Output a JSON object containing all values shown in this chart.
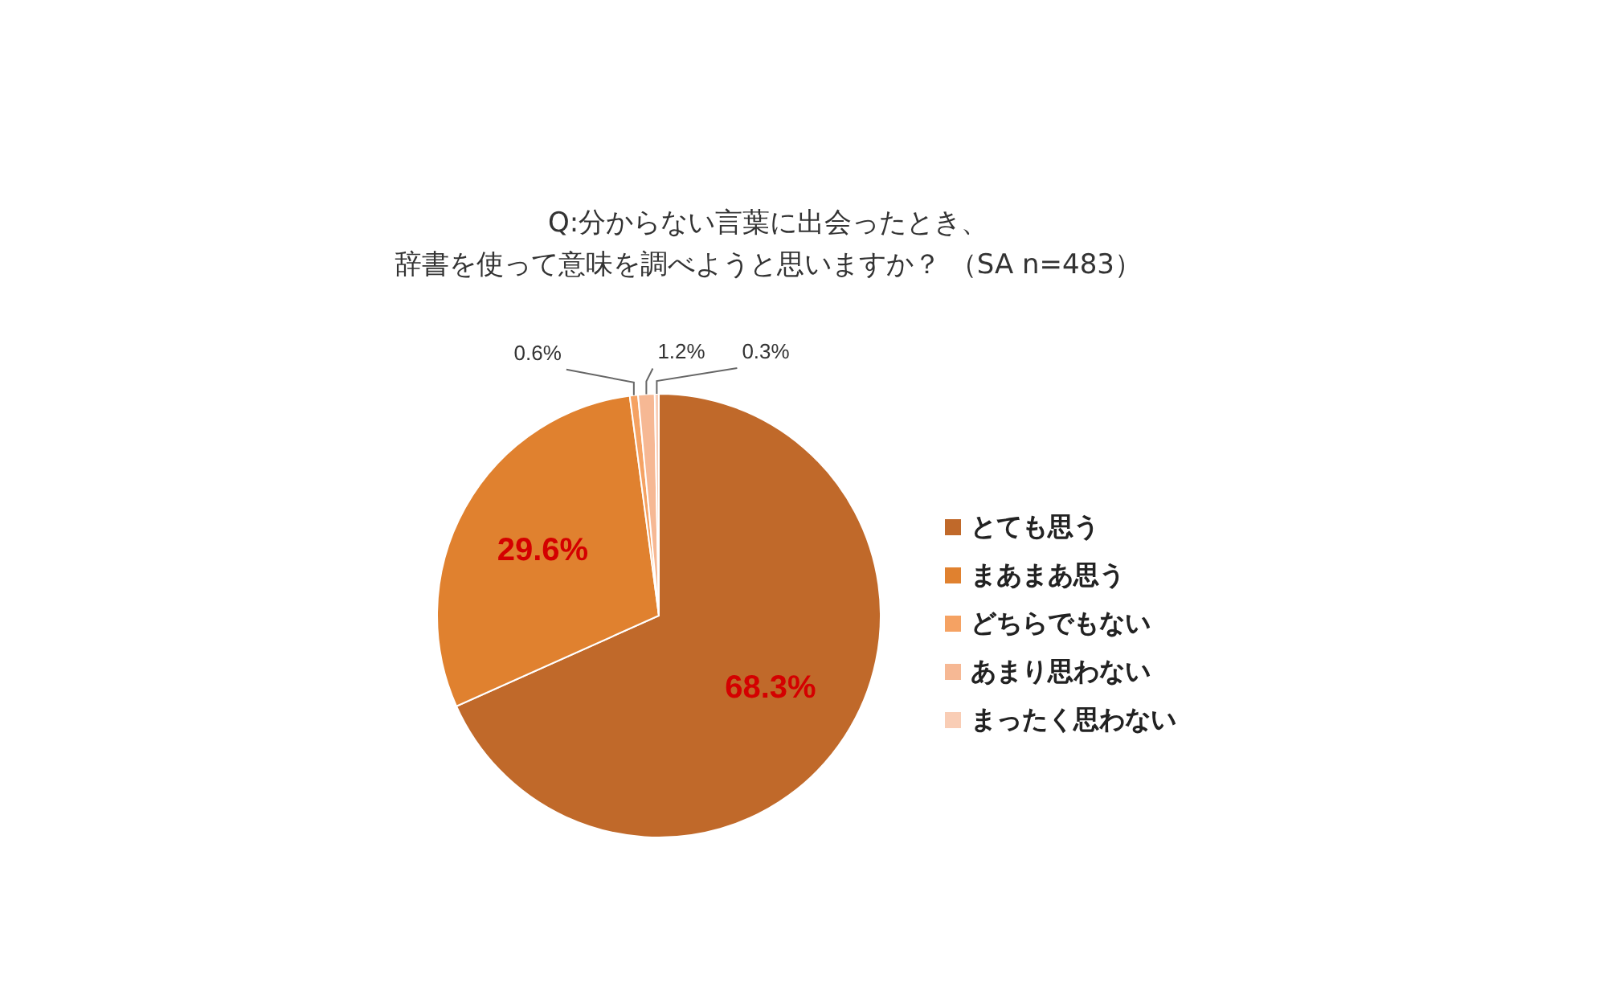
{
  "chart_data": {
    "type": "pie",
    "title": "Q:分からない言葉に出会ったとき、",
    "subtitle": "辞書を使って意味を調べようと思いますか？ （SA n=483）",
    "categories": [
      "とても思う",
      "まあまあ思う",
      "どちらでもない",
      "あまり思わない",
      "まったく思わない"
    ],
    "values": [
      68.3,
      29.6,
      0.6,
      1.2,
      0.3
    ],
    "colors": [
      "#c0692a",
      "#e0812f",
      "#f5a263",
      "#f6b894",
      "#f9cdb5"
    ],
    "value_labels": [
      "68.3%",
      "29.6%",
      "0.6%",
      "1.2%",
      "0.3%"
    ],
    "legend": "right"
  }
}
